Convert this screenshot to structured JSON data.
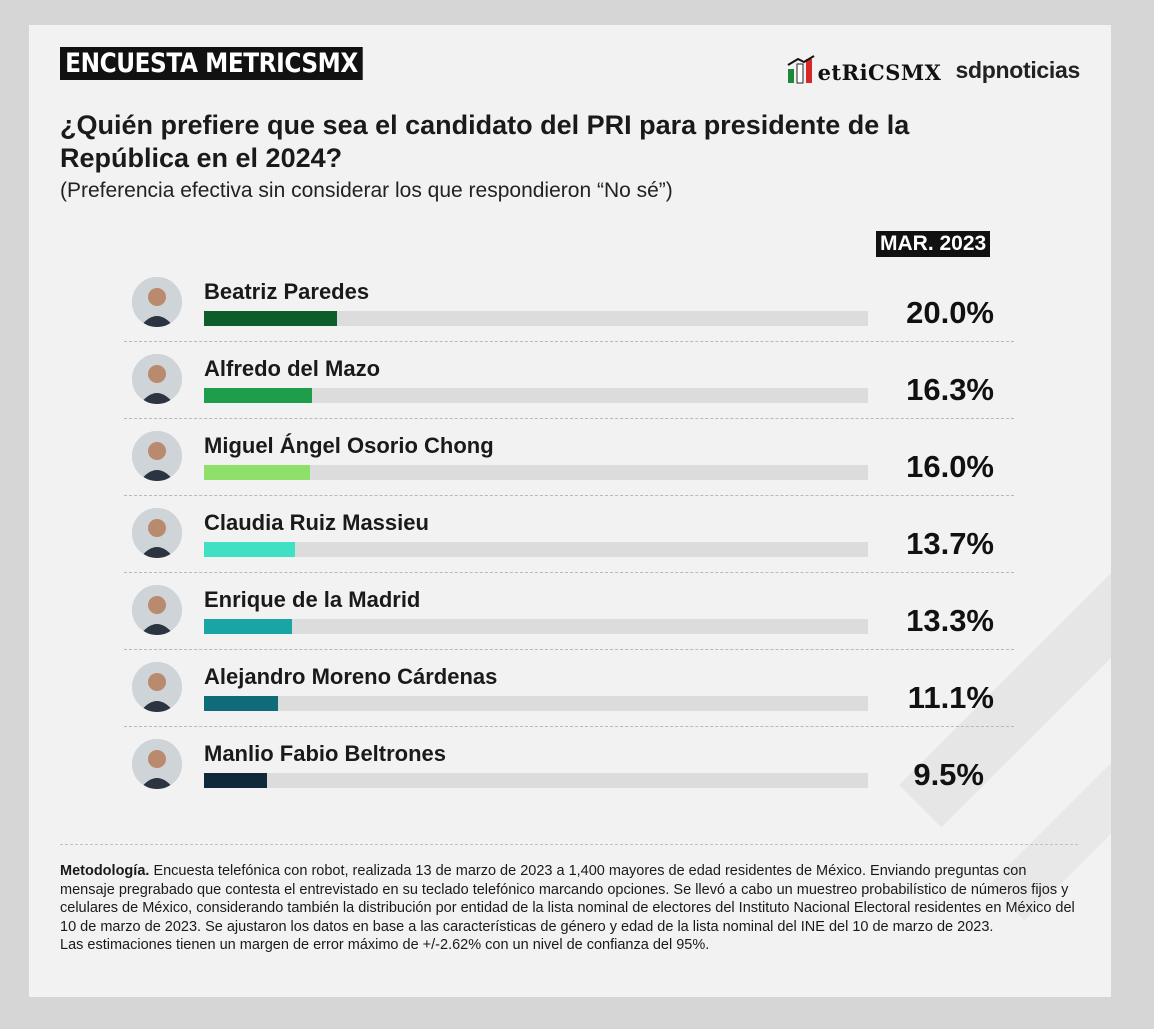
{
  "header": {
    "brand_badge": "ENCUESTA METRICSMX",
    "logo_metrics": "etRiCSMX",
    "logo_sdp": "sdpnoticias"
  },
  "title": "¿Quién prefiere que sea el candidato del PRI para presidente de la República en el 2024?",
  "subtitle": "(Preferencia efectiva sin considerar los que respondieron “No sé”)",
  "date_label": "MAR. 2023",
  "chart_data": {
    "type": "bar",
    "orientation": "horizontal",
    "categories": [
      "Beatriz Paredes",
      "Alfredo del Mazo",
      "Miguel Ángel Osorio Chong",
      "Claudia Ruiz Massieu",
      "Enrique de la Madrid",
      "Alejandro Moreno Cárdenas",
      "Manlio Fabio Beltrones"
    ],
    "values": [
      20.0,
      16.3,
      16.0,
      13.7,
      13.3,
      11.1,
      9.5
    ],
    "value_labels": [
      "20.0%",
      "16.3%",
      "16.0%",
      "13.7%",
      "13.3%",
      "11.1%",
      "9.5%"
    ],
    "bar_colors": [
      "#0d5c2a",
      "#1e9e4a",
      "#8ee06a",
      "#3fe0c4",
      "#1aa5a5",
      "#0f6a7a",
      "#0e2a3a"
    ],
    "xlim": [
      0,
      100
    ],
    "grid": false,
    "legend": "none"
  },
  "icons": [
    "avatar-photo"
  ],
  "footnote": {
    "label": "Metodología.",
    "text": " Encuesta telefónica con robot, realizada 13 de marzo de 2023 a 1,400 mayores de edad residentes de México. Enviando preguntas con mensaje pregrabado que contesta el entrevistado en su teclado telefónico marcando opciones. Se llevó a cabo un muestreo probabilístico de números fijos y celulares de México, considerando también la distribución por entidad de la lista nominal de electores del Instituto Nacional Electoral residentes en México del 10 de marzo de 2023. Se ajustaron los datos en base a las características de género y edad de la lista nominal del INE del 10 de marzo de 2023.",
    "margin": "Las estimaciones tienen un margen de error máximo de +/-2.62% con un nivel de confianza del 95%."
  }
}
